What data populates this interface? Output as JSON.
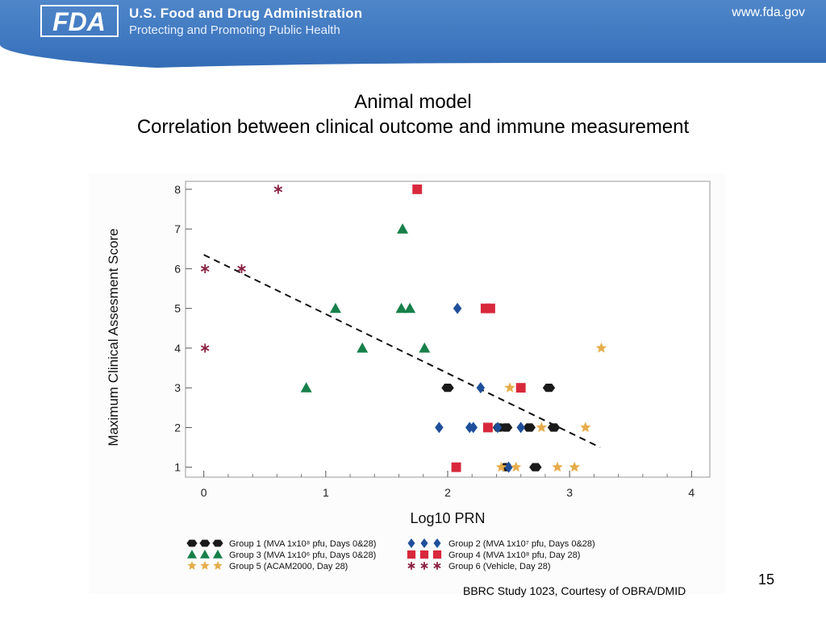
{
  "header": {
    "org_name": "U.S. Food and Drug Administration",
    "tagline": "Protecting and Promoting Public Health",
    "url": "www.fda.gov",
    "logo_text": "FDA"
  },
  "slide": {
    "title_line1": "Animal model",
    "title_line2": "Correlation between clinical outcome and immune measurement",
    "page_number": "15",
    "credit": "BBRC Study 1023, Courtesy of OBRA/DMID"
  },
  "colors": {
    "group1": "#1a1a1a",
    "group2": "#1f4f9a",
    "group3": "#17804a",
    "group4": "#d8283c",
    "group5": "#e6ad4c",
    "group6": "#8a2040",
    "header_blue": "#3f78c0"
  },
  "chart_data": {
    "type": "scatter",
    "xlabel": "Log10 PRN",
    "ylabel": "Maximum Clinical Assesment Score",
    "xlim": [
      -0.15,
      4.15
    ],
    "ylim": [
      0.75,
      8.2
    ],
    "xticks": [
      "0",
      "1",
      "2",
      "3",
      "4"
    ],
    "yticks": [
      "1",
      "2",
      "3",
      "4",
      "5",
      "6",
      "7",
      "8"
    ],
    "grid": false,
    "legend_position": "bottom",
    "trendline": {
      "style": "dashed",
      "x": [
        0,
        3.25
      ],
      "y": [
        6.35,
        1.5
      ]
    },
    "series": [
      {
        "name": "Group 1 (MVA 1x10⁸ pfu, Days 0&28)",
        "marker": "hexagon",
        "color_key": "group1",
        "points": [
          [
            2.0,
            3
          ],
          [
            2.83,
            3
          ],
          [
            2.48,
            2
          ],
          [
            2.67,
            2
          ],
          [
            2.87,
            2
          ],
          [
            2.42,
            2
          ],
          [
            2.72,
            1
          ],
          [
            2.48,
            1
          ]
        ]
      },
      {
        "name": "Group 2 (MVA 1x10⁷ pfu, Days 0&28)",
        "marker": "diamond",
        "color_key": "group2",
        "points": [
          [
            2.08,
            5
          ],
          [
            2.27,
            3
          ],
          [
            1.93,
            2
          ],
          [
            2.18,
            2
          ],
          [
            2.21,
            2
          ],
          [
            2.41,
            2
          ],
          [
            2.6,
            2
          ],
          [
            2.5,
            1
          ]
        ]
      },
      {
        "name": "Group 3 (MVA 1x10⁶ pfu, Days 0&28)",
        "marker": "triangle",
        "color_key": "group3",
        "points": [
          [
            1.63,
            7
          ],
          [
            1.08,
            5
          ],
          [
            1.62,
            5
          ],
          [
            1.69,
            5
          ],
          [
            1.3,
            4
          ],
          [
            1.81,
            4
          ],
          [
            0.84,
            3
          ]
        ]
      },
      {
        "name": "Group 4 (MVA 1x10⁸ pfu, Day 28)",
        "marker": "square",
        "color_key": "group4",
        "points": [
          [
            1.75,
            8
          ],
          [
            2.31,
            5
          ],
          [
            2.35,
            5
          ],
          [
            2.6,
            3
          ],
          [
            2.33,
            2
          ],
          [
            2.07,
            1
          ]
        ]
      },
      {
        "name": "Group 5 (ACAM2000, Day 28)",
        "marker": "star",
        "color_key": "group5",
        "points": [
          [
            3.26,
            4
          ],
          [
            2.51,
            3
          ],
          [
            3.13,
            2
          ],
          [
            2.77,
            2
          ],
          [
            2.44,
            1
          ],
          [
            2.56,
            1
          ],
          [
            2.9,
            1
          ],
          [
            3.04,
            1
          ]
        ]
      },
      {
        "name": "Group 6 (Vehicle,  Day 28)",
        "marker": "asterisk",
        "color_key": "group6",
        "points": [
          [
            0.61,
            8
          ],
          [
            0.01,
            6
          ],
          [
            0.31,
            6
          ],
          [
            0.01,
            4
          ]
        ]
      }
    ]
  }
}
